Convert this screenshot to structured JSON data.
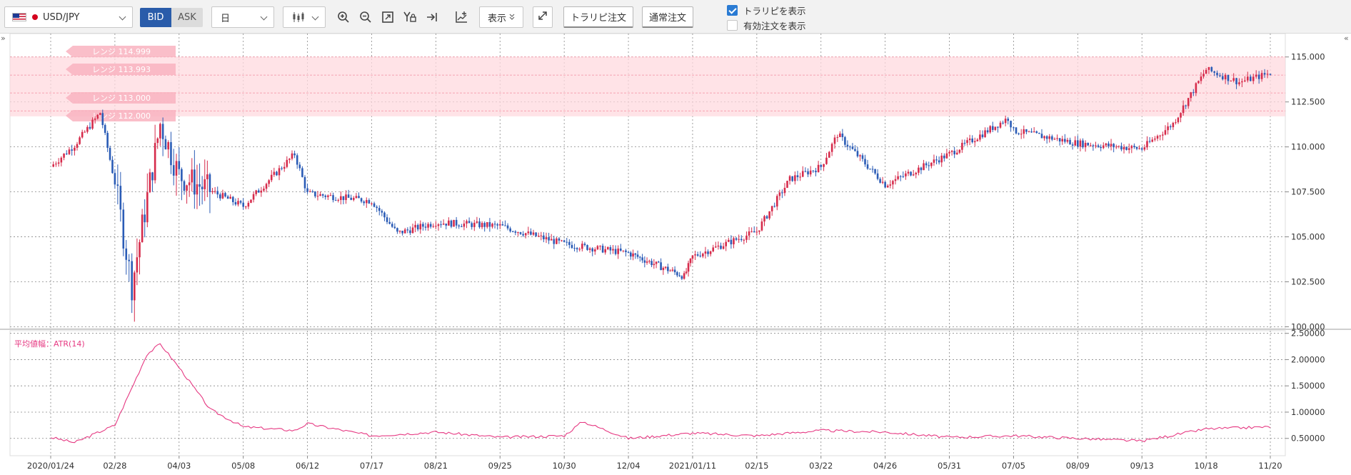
{
  "toolbar": {
    "symbol": "USD/JPY",
    "bid_label": "BID",
    "ask_label": "ASK",
    "period": "日",
    "display_label": "表示",
    "trapi_order_label": "トラリピ注文",
    "normal_order_label": "通常注文",
    "show_trapi_label": "トラリピを表示",
    "show_trapi_checked": true,
    "show_active_orders_label": "有効注文を表示",
    "show_active_orders_checked": false,
    "icons": [
      "candlestick-icon",
      "zoom-in-icon",
      "zoom-out-icon",
      "fit-screen-icon",
      "y-axis-lock-icon",
      "scroll-to-latest-icon",
      "add-indicator-icon",
      "expand-icon"
    ]
  },
  "colors": {
    "up": "#d62b4b",
    "down": "#2b5cb6",
    "atr_line": "#e63982",
    "band_fill": "#ffd9df",
    "band_label_bg": "#f9b3c0"
  },
  "chart_data": [
    {
      "type": "candlestick",
      "symbol": "USD/JPY",
      "timeframe": "日",
      "y_ticks": [
        "115.000",
        "112.500",
        "110.000",
        "107.500",
        "105.000",
        "102.500",
        "100.000"
      ],
      "ylim": [
        99.9,
        116.3
      ],
      "x_ticks": [
        "2020/01/24",
        "02/28",
        "04/03",
        "05/08",
        "06/12",
        "07/17",
        "08/21",
        "09/25",
        "10/30",
        "12/04",
        "2021/01/11",
        "02/15",
        "03/22",
        "04/26",
        "05/31",
        "07/05",
        "08/09",
        "09/13",
        "10/18",
        "11/20"
      ],
      "trapi_ranges": [
        {
          "label": "レンジ 114.999",
          "from": 114.999,
          "to": 113.993
        },
        {
          "label": "レンジ 113.993",
          "from": 113.993,
          "to": 113.0
        },
        {
          "label": "レンジ 113.000",
          "from": 113.0,
          "to": 112.0
        },
        {
          "label": "レンジ 112.000",
          "from": 112.0,
          "to": 111.7
        }
      ],
      "close_path": [
        [
          "2020/01/24",
          108.9
        ],
        [
          "02/06",
          110.1
        ],
        [
          "02/20",
          111.9
        ],
        [
          "02/28",
          108.0
        ],
        [
          "03/09",
          102.3
        ],
        [
          "03/24",
          111.3
        ],
        [
          "04/03",
          108.4
        ],
        [
          "05/08",
          106.7
        ],
        [
          "06/05",
          109.6
        ],
        [
          "06/12",
          107.4
        ],
        [
          "07/17",
          107.0
        ],
        [
          "07/31",
          105.2
        ],
        [
          "08/21",
          105.8
        ],
        [
          "09/25",
          105.6
        ],
        [
          "10/30",
          104.6
        ],
        [
          "12/04",
          104.1
        ],
        [
          "2021/01/06",
          102.8
        ],
        [
          "2021/01/11",
          103.9
        ],
        [
          "02/15",
          105.3
        ],
        [
          "03/05",
          108.2
        ],
        [
          "03/22",
          108.9
        ],
        [
          "03/31",
          110.7
        ],
        [
          "04/26",
          107.9
        ],
        [
          "05/31",
          109.6
        ],
        [
          "07/02",
          111.6
        ],
        [
          "07/05",
          110.9
        ],
        [
          "08/09",
          110.2
        ],
        [
          "09/13",
          109.9
        ],
        [
          "09/30",
          111.3
        ],
        [
          "10/18",
          114.3
        ],
        [
          "11/04",
          113.6
        ],
        [
          "11/20",
          114.1
        ]
      ]
    },
    {
      "type": "line",
      "title": "平均値幅：ATR(14)",
      "y_ticks": [
        "2.50000",
        "2.00000",
        "1.50000",
        "1.00000",
        "0.50000"
      ],
      "ylim": [
        0.17,
        2.55
      ],
      "series": [
        {
          "name": "ATR(14)",
          "values": [
            [
              "2020/01/24",
              0.52
            ],
            [
              "02/06",
              0.42
            ],
            [
              "02/28",
              0.75
            ],
            [
              "03/17",
              2.1
            ],
            [
              "03/24",
              2.3
            ],
            [
              "04/03",
              1.85
            ],
            [
              "04/20",
              1.05
            ],
            [
              "05/08",
              0.72
            ],
            [
              "06/05",
              0.65
            ],
            [
              "06/12",
              0.78
            ],
            [
              "07/17",
              0.55
            ],
            [
              "08/21",
              0.62
            ],
            [
              "09/25",
              0.52
            ],
            [
              "10/30",
              0.55
            ],
            [
              "11/09",
              0.82
            ],
            [
              "12/04",
              0.5
            ],
            [
              "2021/01/11",
              0.6
            ],
            [
              "02/15",
              0.55
            ],
            [
              "03/22",
              0.65
            ],
            [
              "04/26",
              0.62
            ],
            [
              "05/31",
              0.52
            ],
            [
              "07/05",
              0.55
            ],
            [
              "08/09",
              0.5
            ],
            [
              "09/13",
              0.45
            ],
            [
              "10/18",
              0.68
            ],
            [
              "11/20",
              0.72
            ]
          ]
        }
      ]
    }
  ]
}
